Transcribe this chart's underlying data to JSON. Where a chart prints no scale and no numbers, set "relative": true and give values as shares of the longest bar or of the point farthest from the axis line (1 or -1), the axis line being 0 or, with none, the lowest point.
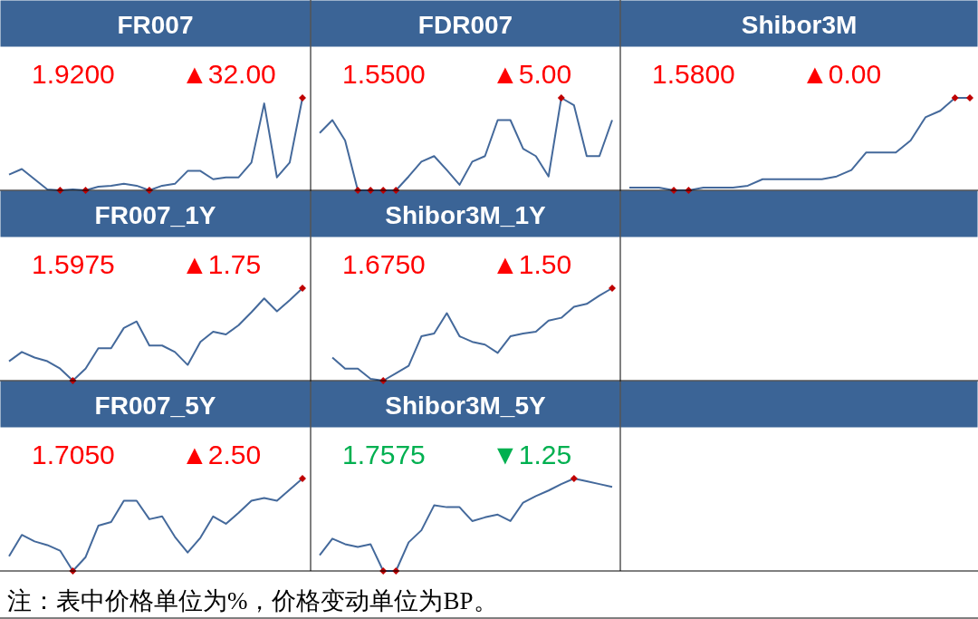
{
  "chart_data": [
    {
      "type": "line",
      "title": "FR007",
      "relative": true,
      "annotations": [
        "1.9200",
        "▲32.00"
      ],
      "categories": [
        null,
        null,
        null,
        null,
        null,
        null,
        null,
        null,
        null,
        null,
        null,
        null,
        null,
        null,
        null,
        null,
        null,
        null,
        null,
        null,
        null,
        null,
        null,
        null
      ],
      "series": [
        {
          "color": "#44699b",
          "values": [
            0.17,
            0.23,
            0.12,
            0.01,
            0,
            0.01,
            0,
            0.04,
            0.05,
            0.07,
            0.05,
            0,
            0.05,
            0.07,
            0.21,
            0.21,
            0.12,
            0.14,
            0.14,
            0.3,
            0.94,
            0.14,
            0.3,
            1
          ]
        }
      ]
    },
    {
      "type": "line",
      "title": "FDR007",
      "relative": true,
      "annotations": [
        "1.5500",
        "▲5.00"
      ],
      "categories": [
        null,
        null,
        null,
        null,
        null,
        null,
        null,
        null,
        null,
        null,
        null,
        null,
        null,
        null,
        null,
        null,
        null,
        null,
        null,
        null,
        null,
        null,
        null,
        null
      ],
      "series": [
        {
          "color": "#44699b",
          "values": [
            0.62,
            0.76,
            0.54,
            0,
            0,
            0,
            0,
            0.15,
            0.31,
            0.37,
            0.22,
            0.06,
            0.31,
            0.37,
            0.76,
            0.76,
            0.45,
            0.37,
            0.15,
            1,
            0.92,
            0.37,
            0.37,
            0.76
          ]
        }
      ]
    },
    {
      "type": "line",
      "title": "Shibor3M",
      "relative": true,
      "annotations": [
        "1.5800",
        "▲0.00"
      ],
      "categories": [
        null,
        null,
        null,
        null,
        null,
        null,
        null,
        null,
        null,
        null,
        null,
        null,
        null,
        null,
        null,
        null,
        null,
        null,
        null,
        null,
        null,
        null,
        null,
        null
      ],
      "series": [
        {
          "color": "#44699b",
          "values": [
            0.03,
            0.03,
            0.03,
            0,
            0,
            0.03,
            0.03,
            0.03,
            0.05,
            0.12,
            0.12,
            0.12,
            0.12,
            0.12,
            0.15,
            0.22,
            0.41,
            0.41,
            0.41,
            0.54,
            0.79,
            0.86,
            1,
            1
          ]
        }
      ]
    },
    {
      "type": "line",
      "title": "FR007_1Y",
      "relative": true,
      "annotations": [
        "1.5975",
        "▲1.75"
      ],
      "categories": [
        null,
        null,
        null,
        null,
        null,
        null,
        null,
        null,
        null,
        null,
        null,
        null,
        null,
        null,
        null,
        null,
        null,
        null,
        null,
        null,
        null,
        null,
        null,
        null
      ],
      "series": [
        {
          "color": "#44699b",
          "values": [
            0.21,
            0.31,
            0.25,
            0.21,
            0.13,
            0,
            0.13,
            0.35,
            0.35,
            0.57,
            0.64,
            0.38,
            0.38,
            0.31,
            0.17,
            0.42,
            0.53,
            0.5,
            0.6,
            0.74,
            0.89,
            0.75,
            0.87,
            1
          ]
        }
      ]
    },
    {
      "type": "line",
      "title": "Shibor3M_1Y",
      "relative": true,
      "annotations": [
        "1.6750",
        "▲1.50"
      ],
      "categories": [
        null,
        null,
        null,
        null,
        null,
        null,
        null,
        null,
        null,
        null,
        null,
        null,
        null,
        null,
        null,
        null,
        null,
        null,
        null,
        null,
        null,
        null,
        null
      ],
      "series": [
        {
          "color": "#44699b",
          "values": [
            0.25,
            0.13,
            0.13,
            0.02,
            0,
            0.08,
            0.16,
            0.48,
            0.51,
            0.73,
            0.48,
            0.42,
            0.39,
            0.3,
            0.48,
            0.51,
            0.53,
            0.65,
            0.68,
            0.8,
            0.83,
            0.92,
            1
          ]
        }
      ]
    },
    {
      "type": "line",
      "title": "FR007_5Y",
      "relative": true,
      "annotations": [
        "1.7050",
        "▲2.50"
      ],
      "categories": [
        null,
        null,
        null,
        null,
        null,
        null,
        null,
        null,
        null,
        null,
        null,
        null,
        null,
        null,
        null,
        null,
        null,
        null,
        null,
        null,
        null,
        null,
        null,
        null
      ],
      "series": [
        {
          "color": "#44699b",
          "values": [
            0.16,
            0.39,
            0.32,
            0.28,
            0.22,
            0,
            0.15,
            0.49,
            0.53,
            0.76,
            0.76,
            0.56,
            0.59,
            0.37,
            0.2,
            0.36,
            0.59,
            0.51,
            0.63,
            0.76,
            0.79,
            0.76,
            0.88,
            1
          ]
        }
      ]
    },
    {
      "type": "line",
      "title": "Shibor3M_5Y",
      "relative": true,
      "annotations": [
        "1.7575",
        "▼1.25"
      ],
      "categories": [
        null,
        null,
        null,
        null,
        null,
        null,
        null,
        null,
        null,
        null,
        null,
        null,
        null,
        null,
        null,
        null,
        null,
        null,
        null,
        null,
        null,
        null,
        null,
        null
      ],
      "series": [
        {
          "color": "#44699b",
          "values": [
            0.17,
            0.35,
            0.29,
            0.26,
            0.29,
            0,
            0,
            0.31,
            0.44,
            0.71,
            0.69,
            0.69,
            0.54,
            0.58,
            0.61,
            0.54,
            0.74,
            0.81,
            0.87,
            0.94,
            1,
            0.97,
            0.94,
            0.91
          ]
        }
      ]
    },
    {
      "type": "other",
      "annotations": [
        "注：表中价格单位为%，价格变动单位为BP。"
      ]
    }
  ]
}
